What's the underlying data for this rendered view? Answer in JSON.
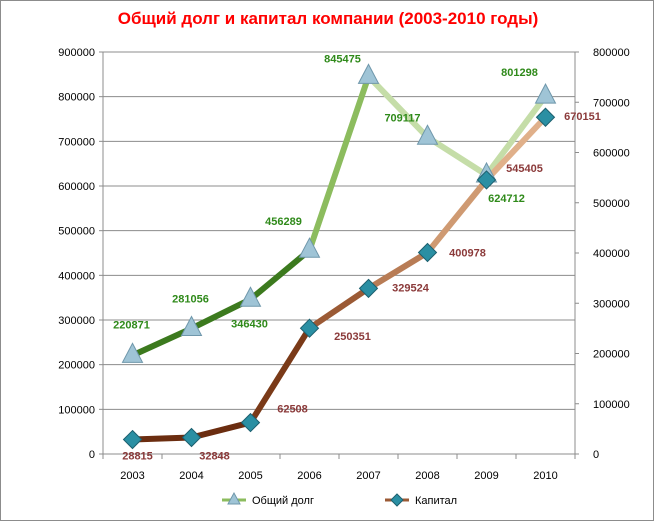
{
  "chart_data": {
    "type": "line",
    "title": "Общий долг и капитал компании (2003-2010 годы)",
    "categories": [
      "2003",
      "2004",
      "2005",
      "2006",
      "2007",
      "2008",
      "2009",
      "2010"
    ],
    "y_left": {
      "min": 0,
      "max": 900000,
      "step": 100000,
      "ticks": [
        "0",
        "100000",
        "200000",
        "300000",
        "400000",
        "500000",
        "600000",
        "700000",
        "800000",
        "900000"
      ]
    },
    "y_right": {
      "min": 0,
      "max": 800000,
      "step": 100000,
      "ticks": [
        "0",
        "100000",
        "200000",
        "300000",
        "400000",
        "500000",
        "600000",
        "700000",
        "800000"
      ]
    },
    "grid": true,
    "legend_position": "bottom",
    "series": [
      {
        "name": "Общий долг",
        "axis": "left",
        "values": [
          220871,
          281056,
          346430,
          456289,
          845475,
          709117,
          624712,
          801298
        ],
        "labels": [
          "220871",
          "281056",
          "346430",
          "456289",
          "845475",
          "709117",
          "624712",
          "801298"
        ],
        "line_colors": [
          "#3c7a1e",
          "#3c7a1e",
          "#3c7a1e",
          "#8cbc5e",
          "#c5dda8",
          "#c5dda8",
          "#c5dda8"
        ],
        "marker": "triangle",
        "marker_color": "#9fc4d6",
        "label_color": "#2f8a1a"
      },
      {
        "name": "Капитал",
        "axis": "right",
        "values": [
          28815,
          32848,
          62508,
          250351,
          329524,
          400978,
          545405,
          670151
        ],
        "labels": [
          "28815",
          "32848",
          "62508",
          "250351",
          "329524",
          "400978",
          "545405",
          "670151"
        ],
        "line_colors": [
          "#6b2d10",
          "#6b2d10",
          "#7a3a18",
          "#9b5a35",
          "#b87c55",
          "#cf9a72",
          "#e0b08a"
        ],
        "marker": "diamond",
        "marker_color": "#2a8fa3",
        "label_color": "#8b3a3a"
      }
    ]
  }
}
